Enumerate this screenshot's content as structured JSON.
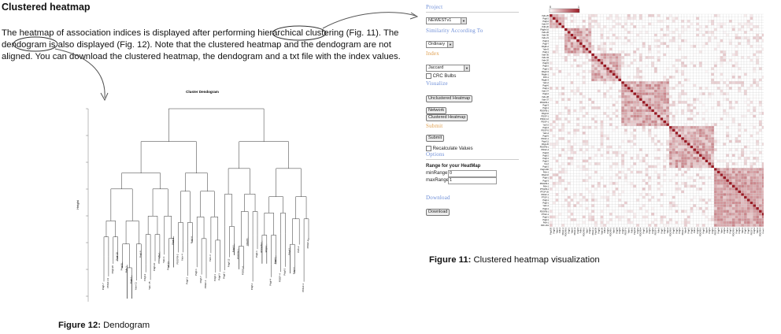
{
  "section": {
    "title": "Clustered heatmap"
  },
  "body": {
    "text_before": "The heatmap of association indices is displayed after performing ",
    "circled_word_1": "hierarchical",
    "text_mid": " clustering (Fig. 11). The ",
    "circled_word_2": "dendogram",
    "text_after": " is also displayed (Fig. 12). Note that the clustered heatmap and the dendogram are not aligned. You can download the clustered heatmap, the dendogram and a txt file with the index values."
  },
  "fig12": {
    "prefix": "Figure 12:",
    "text": " Dendogram",
    "plot_title": "Cluster Dendogram",
    "ylabel": "Height"
  },
  "fig11": {
    "prefix": "Figure 11:",
    "text": " Clustered heatmap visualization"
  },
  "panel": {
    "project_header": "Project",
    "project_value": "NEWESTv1",
    "similarity_header": "Similarity According To",
    "similarity_value": "Ordinary",
    "index_header": "Index",
    "index_value": "Jaccard",
    "use_crc_label": "CRC Bulbs",
    "visualize_header": "Visualize",
    "unclustered_button": "Unclustered Heatmap",
    "network_button": "Network",
    "clustered_button": "Clustered Heatmap",
    "submit_header": "Submit",
    "submit_button": "Submit",
    "recalc_label": "Recalculate Values",
    "options_header": "Options",
    "range_title": "Range for your HeatMap",
    "min_label": "minRange:",
    "min_value": "0",
    "max_label": "maxRange:",
    "max_value": "1",
    "download_header": "Download",
    "download_button": "Download"
  },
  "heatmap": {
    "scale_min": "0",
    "scale_max": "1",
    "colors": {
      "low": "#ffffff",
      "high": "#9b1b25",
      "grid": "#cfcfcf"
    },
    "row_labels": [
      "Yabr-25",
      "Pdgf-2",
      "Pdgf-2",
      "Yabr-67",
      "Pdfr-20",
      "Pdgfb-16",
      "Yabr-26",
      "Yabr-30",
      "Yabr-21",
      "Pdgf-3",
      "Pdgf-7",
      "Pdgfb-2",
      "Yabr-5",
      "Pdgf-1",
      "Yabr-30",
      "Yabr-34",
      "Yabr-20",
      "Pdgf-5",
      "Pdgf-2",
      "Pdgf-1",
      "Pdgf-13",
      "Pdgfb-1",
      "Pdfr-1",
      "Pdgfb-3",
      "Yabr-2",
      "Pdgf-6",
      "Pdgf-1",
      "Yabr-27",
      "Pdgf-2",
      "Yabr-28",
      "Yabr-37",
      "PDGFB-1",
      "Pdgf-3",
      "Pdgf-1",
      "PDGFB-1",
      "Pdgf-10",
      "PDGF-1",
      "PDGF-12",
      "PDGF-1",
      "Yar3-2",
      "Pdgf-4",
      "PDGF-5",
      "Yabr-4",
      "Pdgf-5",
      "PDGF-1",
      "Pdgf-11",
      "Pdgf-26",
      "PDGFB-1",
      "PDGF-4",
      "Pdgf-6",
      "Pdgf-2",
      "Pdgf-1",
      "Pdgf-2",
      "Yar-2",
      "Pdgf-2",
      "Pdgf-200",
      "Pdfr-1",
      "Pdgf-10",
      "Pdgf-1",
      "Pdgf-3",
      "PDGFB-1",
      "Pdfr-1",
      "PTGFB-1",
      "PTGF-20",
      "PDGF-1",
      "PTGF-1",
      "Pdgf-1",
      "Pdgf-1",
      "Yabr-1",
      "Pdgf-1",
      "PDGFB-1",
      "PTGF-1",
      "Pdgf-1",
      "Pdgf-1",
      "Pdfr-1",
      "Pdfr-161"
    ],
    "col_labels": [
      "Pdgf-20",
      "Pdgf-2",
      "Yabr-5",
      "Pdfr-1",
      "PDGF-1",
      "PDGFB-2",
      "Pdgf-1",
      "Yabr-2",
      "PDGF-3",
      "Pdgf-5",
      "Pdfr-1",
      "PDGFB-2",
      "Yabr-7",
      "Pdgf-2",
      "PDGF-1",
      "Pdgf-30",
      "Pdgf-5",
      "Yabr-20",
      "Pdfr-4",
      "Pdgf-1",
      "PDGFB-1",
      "Yabr-3",
      "Pdgf-9",
      "Pdgf-5",
      "Pdgf-1",
      "PDGF-2",
      "Yabr-1",
      "Pdfr-3",
      "Pdgf-12",
      "Pdgf-2",
      "PDGFB-4",
      "Pdgf-1",
      "Yabr-6",
      "Pdgf-1",
      "Pdgf-2",
      "PDGF-1",
      "Pdfr-2",
      "Pdgf-7",
      "Pdgf-1",
      "Yabr-4",
      "PDGFB-5",
      "Pdgf-3",
      "Pdgf-1",
      "Pdgf-1",
      "PDGF-7",
      "Yabr-8",
      "Pdgf-1",
      "Pdgf-2",
      "Pdfr-1",
      "Pdgf-3",
      "PDGFB-1",
      "Pdgf-2",
      "Yabr-9",
      "Pdgf-1",
      "Pdgf-1",
      "PDGF-2",
      "Pdgf-4",
      "Yabr-1",
      "Pdgf-2",
      "Pdfr-2",
      "Pdgf-1",
      "PDGFB-2",
      "Pdgf-1",
      "Pdgf-5",
      "Yabr-3",
      "Pdgf-1",
      "Pdgf-2",
      "PDGF-1",
      "Pdgf-2",
      "Yabr-2",
      "PDGFB-3",
      "Pdgf-1",
      "Pdgf-2",
      "Yar-1",
      "Pdgf-1",
      "Pdfr-3"
    ]
  },
  "dendrogram": {
    "leaf_labels": [
      "Pdgf-7",
      "PDGF-13",
      "Pdgf-20",
      "Pdgf-10",
      "Pdgf-8",
      "Pdfr-1",
      "Pdgf-1",
      "Yabr-11",
      "Pdgf-8",
      "Pdgf-2",
      "Yabr-15",
      "Pdgf-10",
      "PDGFB-2",
      "Yabr-1",
      "Pdgf-13",
      "Pdgf-2",
      "PDGFB-2",
      "Yabr-4",
      "Pdgf-3",
      "Pdgf-4",
      "Pdgf-1",
      "Pdgf-7",
      "PDGF-1",
      "Yabr-3",
      "Pdgf-1",
      "Pdgf-3",
      "Pdgf-1",
      "Pdgf-12",
      "Pdgf-2",
      "PDGFB-1",
      "PDGF-4",
      "Pdgf-5",
      "Pdgf-1",
      "Pdgf-1",
      "PDGFB-1",
      "Pdgf-1",
      "Pdgf-4",
      "Pdgf-1",
      "PDGF-4",
      "Pdgf-3",
      "Pdgf-1",
      "Pdgf-6",
      "Pdfr-2",
      "PDGF-1",
      "PDGF-2"
    ]
  }
}
